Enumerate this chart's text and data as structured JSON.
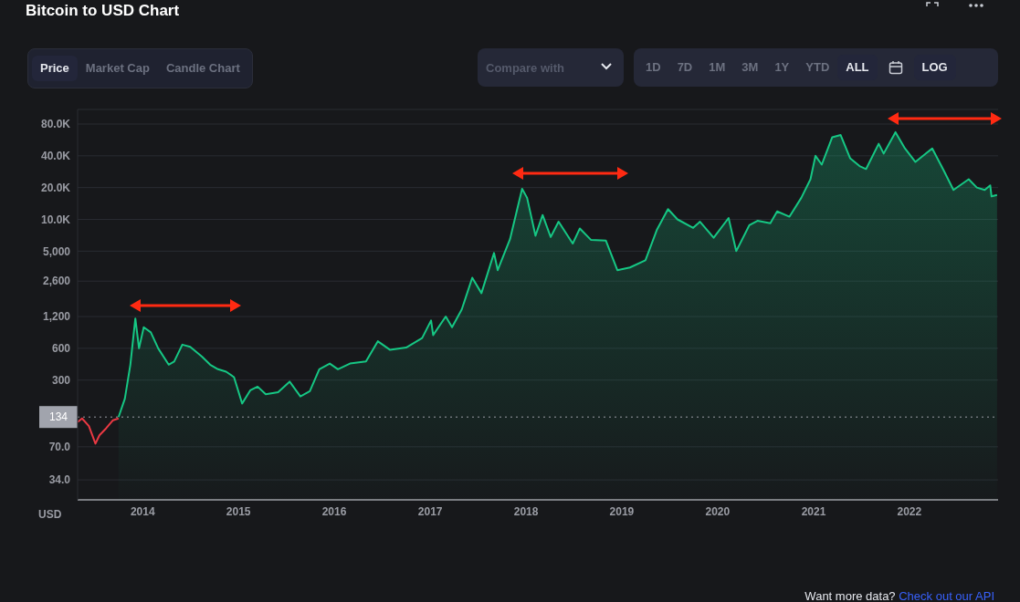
{
  "chart_data": {
    "type": "area",
    "title": "Bitcoin to USD Chart",
    "ylabel": "USD",
    "annotations": [
      "Price",
      "Market Cap",
      "Candle Chart",
      "Compare with",
      "1D",
      "7D",
      "1M",
      "3M",
      "1Y",
      "YTD",
      "ALL",
      "LOG",
      "Want more data?",
      "Check out our API"
    ],
    "log": "y",
    "grid": "y",
    "xlim": [
      "2013-04-28",
      "2022-12-05"
    ],
    "xticks": [
      {
        "value": "2014-01-01",
        "label": "2014"
      },
      {
        "value": "2015-01-01",
        "label": "2015"
      },
      {
        "value": "2016-01-01",
        "label": "2016"
      },
      {
        "value": "2017-01-01",
        "label": "2017"
      },
      {
        "value": "2018-01-01",
        "label": "2018"
      },
      {
        "value": "2019-01-01",
        "label": "2019"
      },
      {
        "value": "2020-01-01",
        "label": "2020"
      },
      {
        "value": "2021-01-01",
        "label": "2021"
      },
      {
        "value": "2022-01-01",
        "label": "2022"
      }
    ],
    "ylim": [
      22,
      110000
    ],
    "yticks": [
      {
        "value": 34,
        "label": "34.0"
      },
      {
        "value": 70,
        "label": "70.0"
      },
      300,
      600,
      {
        "value": 1200,
        "label": "1,200"
      },
      {
        "value": 2600,
        "label": "2,600"
      },
      {
        "value": 5000,
        "label": "5,000"
      },
      {
        "value": 10000,
        "label": "10.0K"
      },
      {
        "value": 20000,
        "label": "20.0K"
      },
      {
        "value": 40000,
        "label": "40.0K"
      },
      {
        "value": 80000,
        "label": "80.0K"
      }
    ],
    "ref_lines": [
      {
        "axis": "y",
        "value": 134,
        "label": "134",
        "line_style": "dotted",
        "color": "#9a9ca4"
      }
    ],
    "series": [
      {
        "type": "line",
        "color": "#ea3943",
        "x": [
          "2013-04-28",
          "2013-05-15",
          "2013-06-10",
          "2013-07-05",
          "2013-07-20",
          "2013-08-15",
          "2013-09-10",
          "2013-10-01"
        ],
        "values": [
          120,
          130,
          110,
          75,
          90,
          105,
          125,
          130
        ]
      },
      {
        "color": "#16c784",
        "x": [
          "2013-10-01",
          "2013-10-25",
          "2013-11-15",
          "2013-12-04",
          "2013-12-18",
          "2014-01-05",
          "2014-02-01",
          "2014-03-01",
          "2014-04-10",
          "2014-05-01",
          "2014-06-01",
          "2014-07-01",
          "2014-08-15",
          "2014-09-15",
          "2014-10-15",
          "2014-11-15",
          "2014-12-15",
          "2015-01-15",
          "2015-02-15",
          "2015-03-15",
          "2015-04-15",
          "2015-06-01",
          "2015-07-15",
          "2015-08-25",
          "2015-09-30",
          "2015-11-05",
          "2015-12-15",
          "2016-01-15",
          "2016-03-01",
          "2016-05-01",
          "2016-06-15",
          "2016-08-01",
          "2016-10-01",
          "2016-12-01",
          "2017-01-04",
          "2017-01-12",
          "2017-03-01",
          "2017-03-25",
          "2017-05-01",
          "2017-06-10",
          "2017-07-15",
          "2017-09-01",
          "2017-09-15",
          "2017-11-01",
          "2017-12-17",
          "2018-01-05",
          "2018-02-06",
          "2018-03-05",
          "2018-04-05",
          "2018-05-05",
          "2018-06-28",
          "2018-07-25",
          "2018-09-05",
          "2018-11-01",
          "2018-12-15",
          "2019-02-01",
          "2019-04-01",
          "2019-05-15",
          "2019-06-26",
          "2019-08-01",
          "2019-09-30",
          "2019-10-26",
          "2019-12-17",
          "2020-02-12",
          "2020-03-12",
          "2020-05-01",
          "2020-06-01",
          "2020-07-20",
          "2020-08-15",
          "2020-10-01",
          "2020-11-15",
          "2020-12-20",
          "2021-01-08",
          "2021-02-01",
          "2021-03-13",
          "2021-04-14",
          "2021-05-20",
          "2021-06-25",
          "2021-07-20",
          "2021-09-06",
          "2021-09-25",
          "2021-11-09",
          "2021-12-15",
          "2022-01-24",
          "2022-03-29",
          "2022-05-12",
          "2022-06-18",
          "2022-08-15",
          "2022-09-15",
          "2022-10-15",
          "2022-11-05",
          "2022-11-10",
          "2022-12-01"
        ],
        "values": [
          134,
          200,
          420,
          1150,
          600,
          950,
          850,
          600,
          420,
          450,
          650,
          620,
          500,
          420,
          380,
          360,
          320,
          180,
          240,
          260,
          220,
          230,
          290,
          210,
          235,
          380,
          430,
          380,
          430,
          450,
          700,
          580,
          610,
          750,
          1100,
          800,
          1200,
          950,
          1400,
          2800,
          2000,
          4800,
          3300,
          6500,
          19500,
          16000,
          7000,
          11000,
          6800,
          9500,
          5900,
          8200,
          6400,
          6300,
          3300,
          3500,
          4100,
          8000,
          12500,
          10000,
          8300,
          9500,
          6700,
          10300,
          5000,
          8800,
          9700,
          9200,
          11900,
          10600,
          16000,
          24000,
          40000,
          33000,
          60000,
          63000,
          38000,
          32000,
          30000,
          52000,
          42000,
          67000,
          47000,
          35000,
          47000,
          29000,
          19000,
          24000,
          20000,
          19000,
          21000,
          16500,
          17000
        ]
      }
    ]
  }
}
